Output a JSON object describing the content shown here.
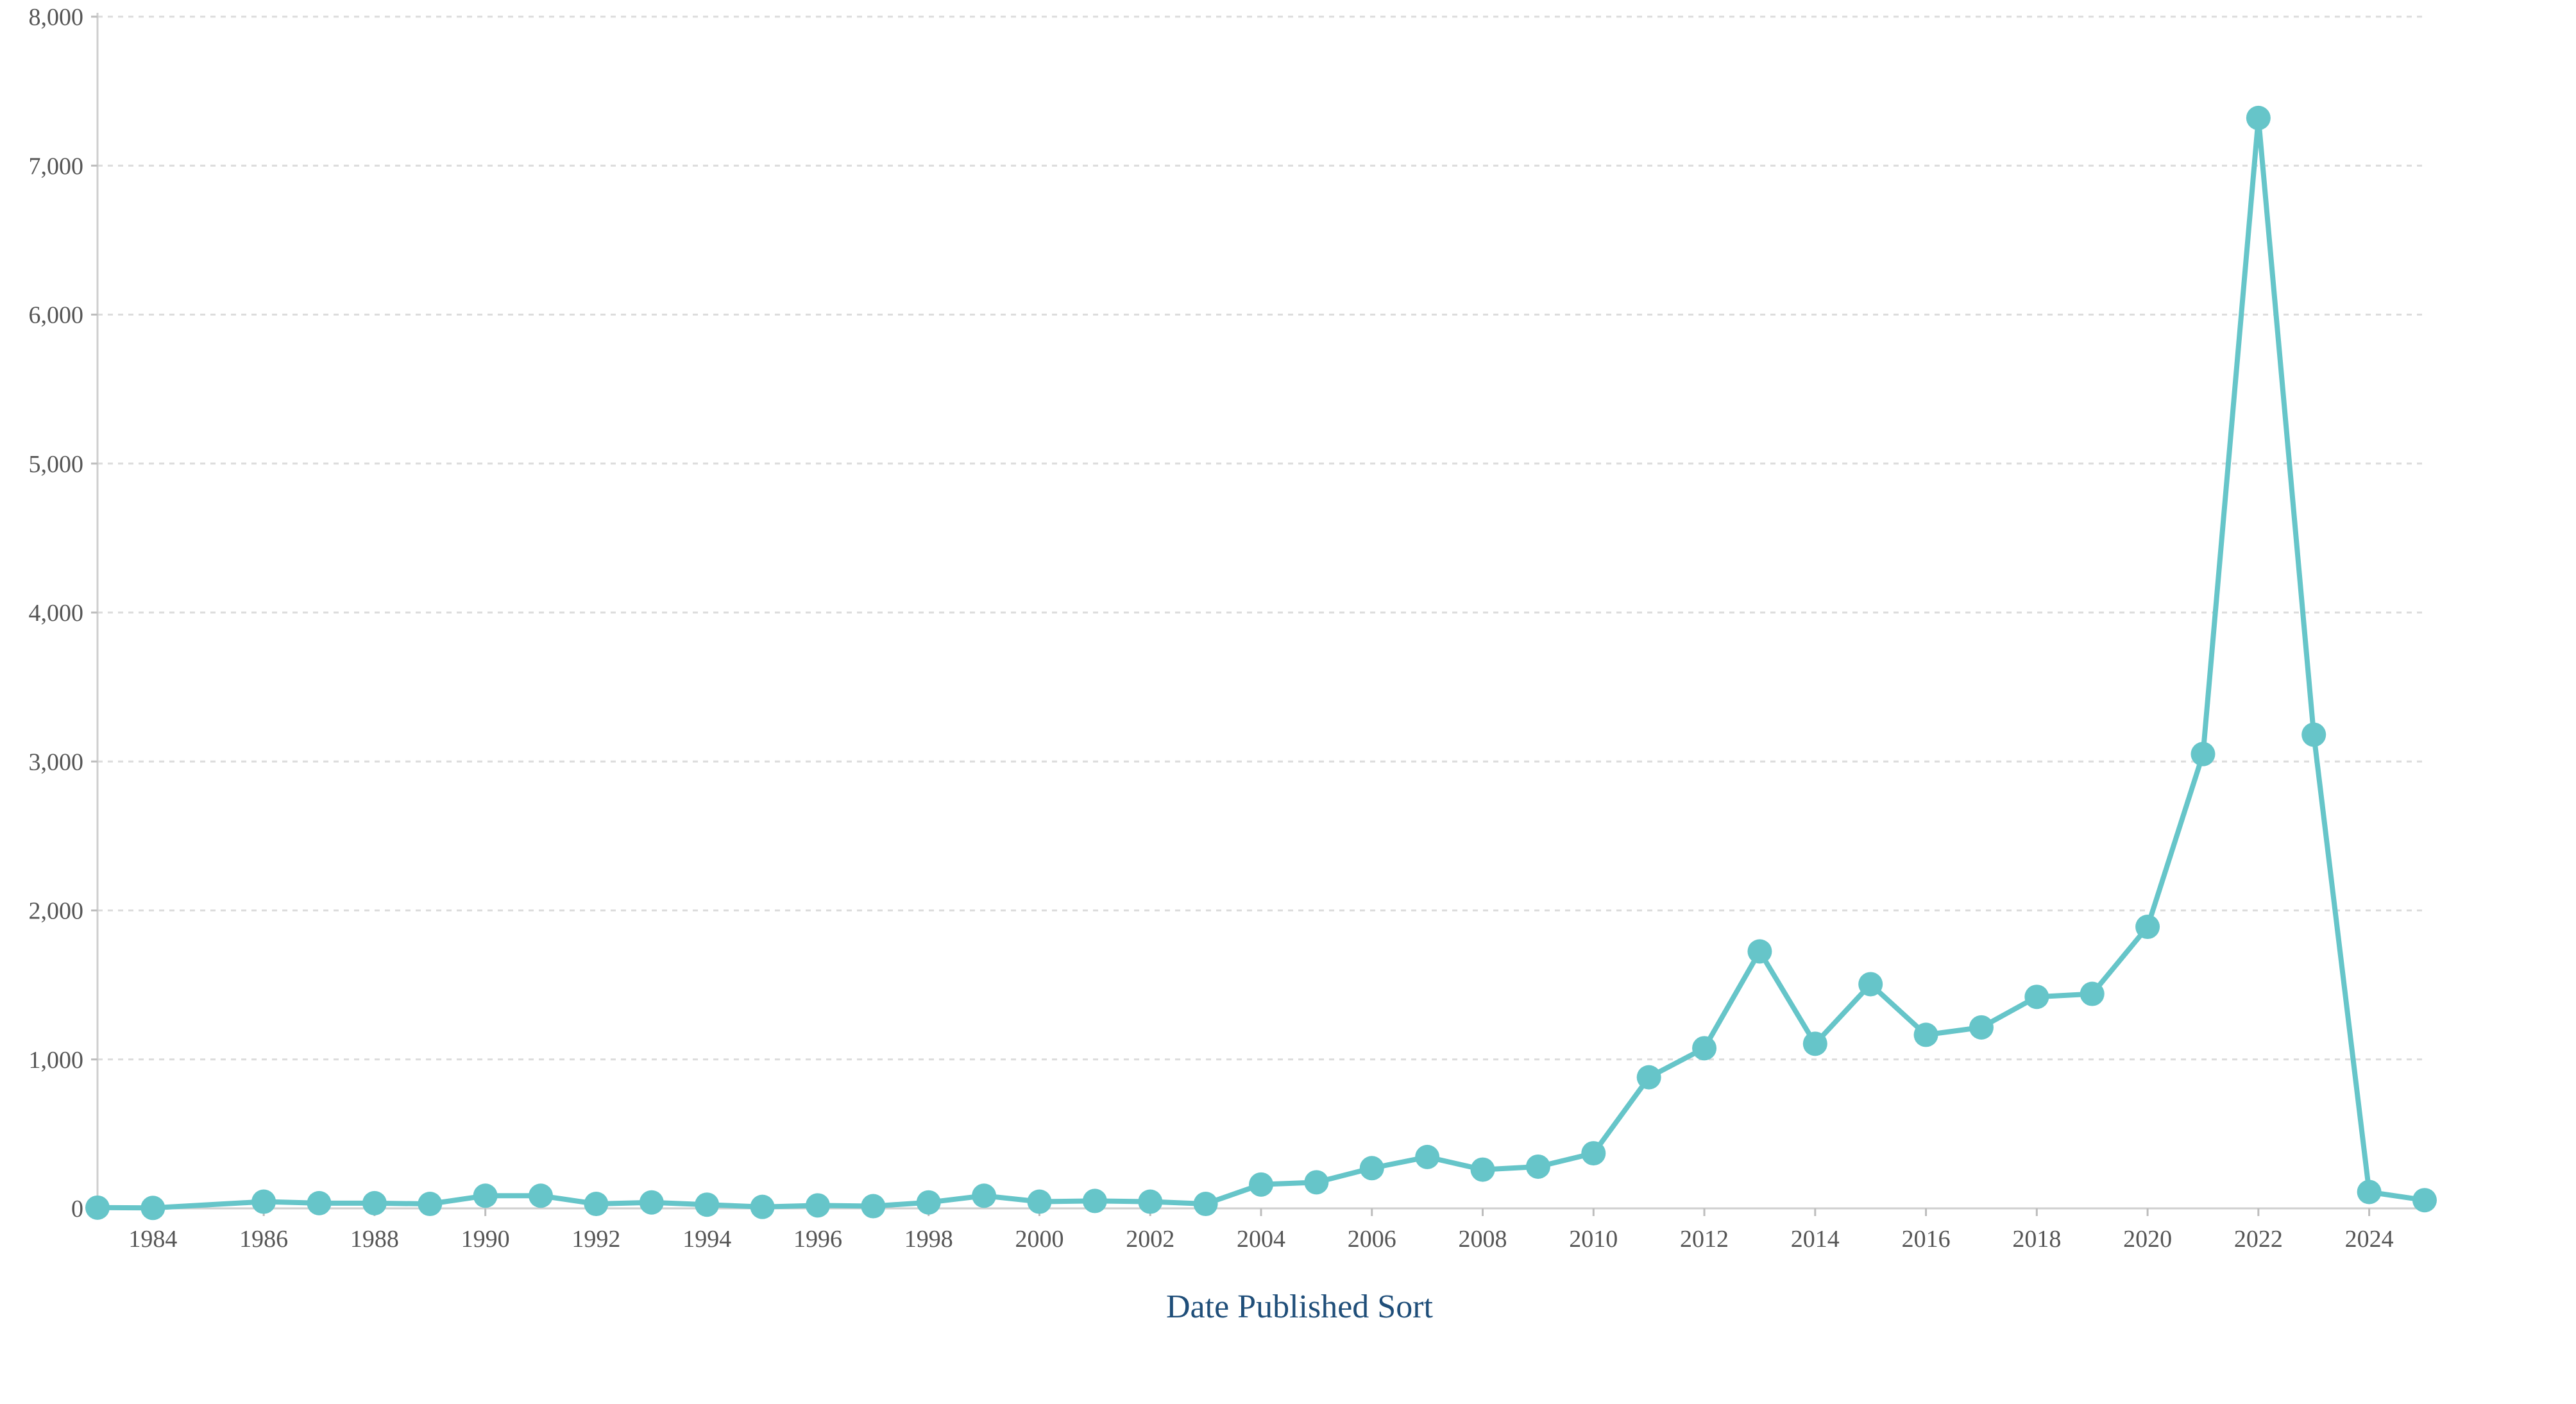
{
  "chart_data": {
    "type": "line",
    "title": "",
    "xlabel": "Date Published Sort",
    "ylabel": "",
    "xlim": [
      1983,
      2025
    ],
    "ylim": [
      0,
      8000
    ],
    "grid": true,
    "legend": "none",
    "color": "#66c5c9",
    "x_ticks": [
      1984,
      1986,
      1988,
      1990,
      1992,
      1994,
      1996,
      1998,
      2000,
      2002,
      2004,
      2006,
      2008,
      2010,
      2012,
      2014,
      2016,
      2018,
      2020,
      2022,
      2024
    ],
    "y_ticks": [
      0,
      1000,
      2000,
      3000,
      4000,
      5000,
      6000,
      7000,
      8000
    ],
    "y_tick_labels": [
      "0",
      "1,000",
      "2,000",
      "3,000",
      "4,000",
      "5,000",
      "6,000",
      "7,000",
      "8,000"
    ],
    "series": [
      {
        "x": [
          1983,
          1984,
          1986,
          1987,
          1988,
          1989,
          1990,
          1991,
          1992,
          1993,
          1994,
          1995,
          1996,
          1997,
          1998,
          1999,
          2000,
          2001,
          2002,
          2003,
          2004,
          2005,
          2006,
          2007,
          2008,
          2009,
          2010,
          2011,
          2012,
          2013,
          2014,
          2015,
          2016,
          2017,
          2018,
          2019,
          2020,
          2021,
          2022,
          2023,
          2024,
          2025
        ],
        "y": [
          5,
          3,
          45,
          35,
          35,
          30,
          85,
          85,
          30,
          40,
          25,
          10,
          20,
          15,
          40,
          85,
          45,
          50,
          45,
          30,
          160,
          175,
          270,
          345,
          260,
          280,
          370,
          880,
          1075,
          1725,
          1105,
          1505,
          1165,
          1215,
          1420,
          1440,
          1890,
          3050,
          7320,
          3180,
          110,
          55
        ]
      }
    ]
  }
}
